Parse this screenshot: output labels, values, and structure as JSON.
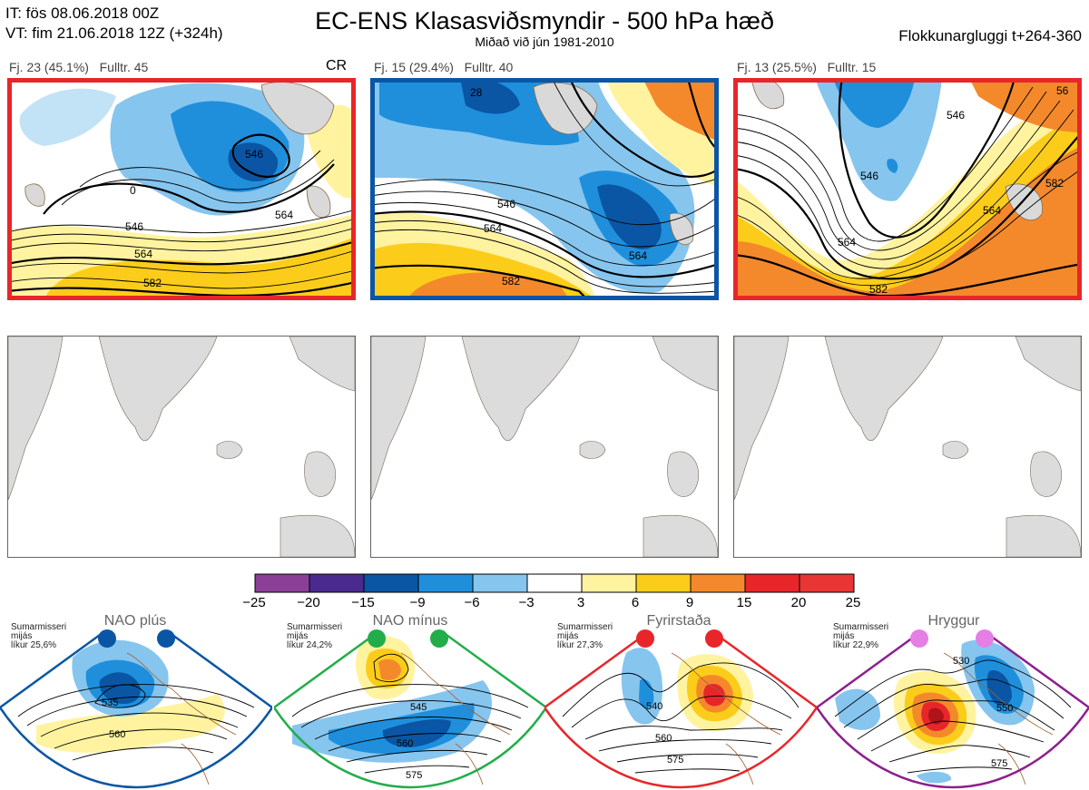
{
  "header": {
    "init_time": "IT: fös 08.06.2018 00Z",
    "valid_time": "VT: fim 21.06.2018 12Z  (+324h)",
    "title": "EC-ENS Klasasviðsmyndir - 500 hPa hæð",
    "subtitle": "Miðað við jún 1981-2010",
    "window": "Flokkunargluggi t+264-360"
  },
  "clusters": [
    {
      "label": "Fj. 23 (45.1%)",
      "rep": "Fulltr. 45",
      "tag": "CR",
      "frame_color": "#e8262a",
      "contour_labels": [
        "546",
        "564",
        "582",
        "546",
        "564",
        "0"
      ]
    },
    {
      "label": "Fj. 15 (29.4%)",
      "rep": "Fulltr. 40",
      "frame_color": "#0a56a4",
      "contour_labels": [
        "546",
        "564",
        "582",
        "564",
        "28"
      ]
    },
    {
      "label": "Fj. 13 (25.5%)",
      "rep": "Fulltr. 15",
      "frame_color": "#e8262a",
      "contour_labels": [
        "546",
        "564",
        "582",
        "582",
        "564",
        "546",
        "56"
      ]
    }
  ],
  "colorbar": {
    "ticks": [
      "−25",
      "−20",
      "−15",
      "−9",
      "−6",
      "−3",
      "3",
      "6",
      "9",
      "15",
      "20",
      "25"
    ],
    "colors": [
      "#8b3f96",
      "#4a2a8f",
      "#0a56a4",
      "#1f8fdc",
      "#86c5ee",
      "#ffffff",
      "#fff3a0",
      "#fbcd1a",
      "#f4892c",
      "#e8262a",
      "#ea3535",
      "#b01318"
    ]
  },
  "regimes": [
    {
      "name": "NAO plús",
      "season": "Sumarmisseri",
      "period": "mijás",
      "prob": "líkur 25,6%",
      "color": "#0a56a4",
      "frame_color": "#0a56a4",
      "contour_labels": [
        "535",
        "560"
      ]
    },
    {
      "name": "NAO mínus",
      "season": "Sumarmisseri",
      "period": "mijás",
      "prob": "líkur 24,2%",
      "color": "#22ad4a",
      "frame_color": "#22ad4a",
      "contour_labels": [
        "545",
        "560",
        "575"
      ]
    },
    {
      "name": "Fyrirstaða",
      "season": "Sumarmisseri",
      "period": "mijás",
      "prob": "líkur 27,3%",
      "color": "#e8262a",
      "frame_color": "#e8262a",
      "contour_labels": [
        "540",
        "560",
        "575"
      ]
    },
    {
      "name": "Hryggur",
      "season": "Sumarmisseri",
      "period": "mijás",
      "prob": "líkur 22,9%",
      "color": "#e57ee5",
      "frame_color": "#8e1f8f",
      "contour_labels": [
        "530",
        "550",
        "575"
      ]
    }
  ]
}
